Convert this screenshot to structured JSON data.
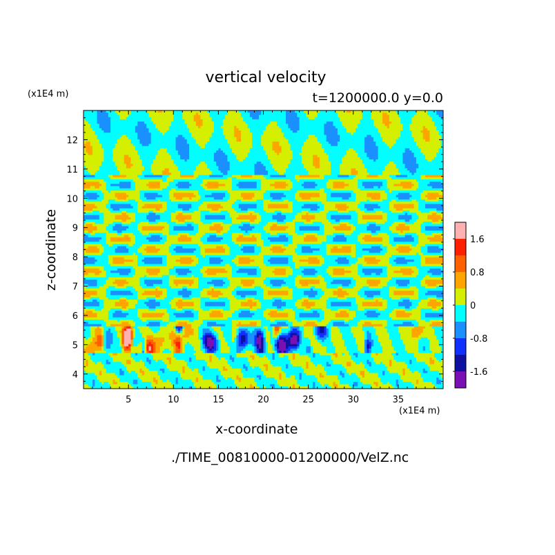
{
  "chart_data": {
    "type": "heatmap",
    "title": "vertical velocity",
    "subtitle": "t=1200000.0 y=0.0",
    "xlabel": "x-coordinate",
    "ylabel": "z-coordinate",
    "x_unit": "(x1E4 m)",
    "y_unit": "(x1E4 m)",
    "source_file": "./TIME_00810000-01200000/VelZ.nc",
    "xlim": [
      0,
      40
    ],
    "ylim": [
      3.5,
      13
    ],
    "x_ticks": [
      5,
      10,
      15,
      20,
      25,
      30,
      35
    ],
    "y_ticks": [
      4,
      5,
      6,
      7,
      8,
      9,
      10,
      11,
      12
    ],
    "colorbar": {
      "range": [
        -2.0,
        2.0
      ],
      "levels": [
        -2.0,
        -1.6,
        -1.2,
        -0.8,
        -0.4,
        0,
        0.4,
        0.8,
        1.2,
        1.6,
        2.0
      ],
      "tick_labels": [
        "1.6",
        "0.8",
        "0",
        "-0.8",
        "-1.6"
      ],
      "tick_values": [
        1.6,
        0.8,
        0,
        -0.8,
        -1.6
      ],
      "colors": [
        "#7a10b4",
        "#1010a0",
        "#1030ff",
        "#1a90ff",
        "#00ffff",
        "#d4f000",
        "#ffa500",
        "#ff6000",
        "#ff2000",
        "#ffb0b0"
      ]
    }
  }
}
